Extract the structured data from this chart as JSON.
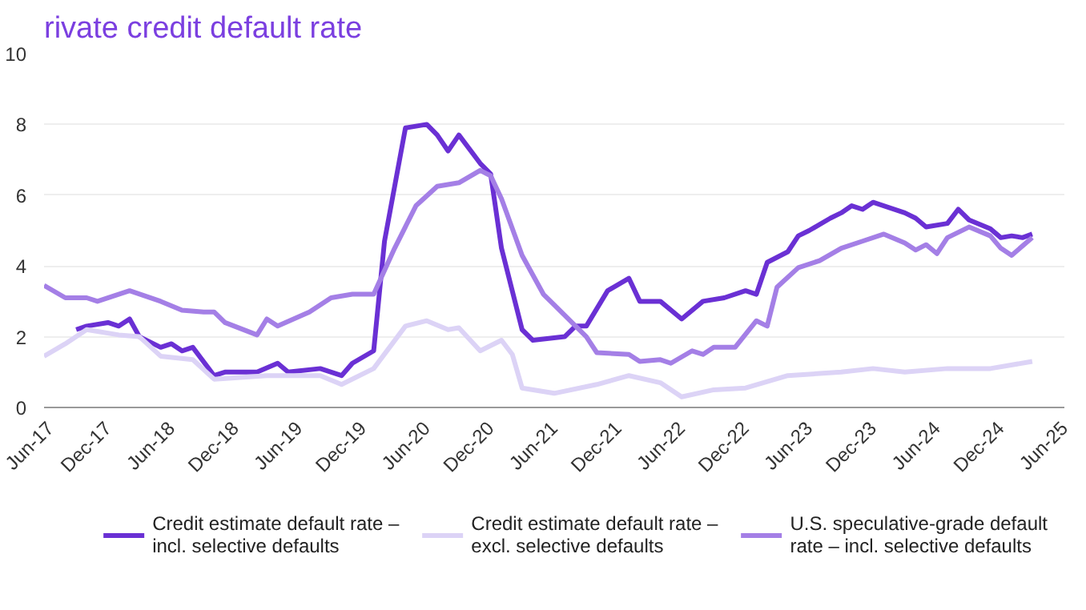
{
  "chart_data": {
    "type": "line",
    "title": "rivate credit default rate",
    "xlim": [
      "2017-06",
      "2025-06"
    ],
    "xticks": [
      {
        "value": "2017-06",
        "label": "Jun-17"
      },
      {
        "value": "2017-12",
        "label": "Dec-17"
      },
      {
        "value": "2018-06",
        "label": "Jun-18"
      },
      {
        "value": "2018-12",
        "label": "Dec-18"
      },
      {
        "value": "2019-06",
        "label": "Jun-19"
      },
      {
        "value": "2019-12",
        "label": "Dec-19"
      },
      {
        "value": "2020-06",
        "label": "Jun-20"
      },
      {
        "value": "2020-12",
        "label": "Dec-20"
      },
      {
        "value": "2021-06",
        "label": "Jun-21"
      },
      {
        "value": "2021-12",
        "label": "Dec-21"
      },
      {
        "value": "2022-06",
        "label": "Jun-22"
      },
      {
        "value": "2022-12",
        "label": "Dec-22"
      },
      {
        "value": "2023-06",
        "label": "Jun-23"
      },
      {
        "value": "2023-12",
        "label": "Dec-23"
      },
      {
        "value": "2024-06",
        "label": "Jun-24"
      },
      {
        "value": "2024-12",
        "label": "Dec-24"
      },
      {
        "value": "2025-06",
        "label": "Jun-25"
      }
    ],
    "ylim": [
      0,
      10
    ],
    "yticks": [
      0,
      2,
      4,
      6,
      8,
      10
    ],
    "grid": "y",
    "legend": "bottom",
    "marker": "none",
    "line_style": "solid",
    "series": [
      {
        "name": "Credit estimate default rate – incl. selective defaults",
        "color": "#6a30d4",
        "x": [
          "2017-09",
          "2017-10",
          "2017-12",
          "2018-01",
          "2018-02",
          "2018-03",
          "2018-05",
          "2018-06",
          "2018-07",
          "2018-08",
          "2018-10",
          "2018-11",
          "2019-02",
          "2019-04",
          "2019-05",
          "2019-08",
          "2019-10",
          "2019-11",
          "2020-01",
          "2020-02",
          "2020-04",
          "2020-06",
          "2020-07",
          "2020-08",
          "2020-09",
          "2020-11",
          "2020-12",
          "2021-01",
          "2021-03",
          "2021-04",
          "2021-07",
          "2021-08",
          "2021-09",
          "2021-11",
          "2022-01",
          "2022-02",
          "2022-04",
          "2022-06",
          "2022-08",
          "2022-10",
          "2022-12",
          "2023-01",
          "2023-02",
          "2023-04",
          "2023-05",
          "2023-06",
          "2023-08",
          "2023-09",
          "2023-10",
          "2023-11",
          "2023-12",
          "2024-03",
          "2024-04",
          "2024-05",
          "2024-07",
          "2024-08",
          "2024-09",
          "2024-11",
          "2024-12",
          "2025-01",
          "2025-02",
          "2025-03"
        ],
        "values": [
          2.2,
          2.3,
          2.4,
          2.3,
          2.5,
          2.0,
          1.7,
          1.8,
          1.6,
          1.7,
          0.9,
          1.0,
          1.0,
          1.25,
          1.0,
          1.1,
          0.9,
          1.25,
          1.6,
          4.7,
          7.9,
          8.0,
          7.7,
          7.25,
          7.7,
          6.9,
          6.6,
          4.5,
          2.2,
          1.9,
          2.0,
          2.3,
          2.3,
          3.3,
          3.65,
          3.0,
          3.0,
          2.5,
          3.0,
          3.1,
          3.3,
          3.2,
          4.1,
          4.4,
          4.85,
          5.0,
          5.35,
          5.5,
          5.7,
          5.6,
          5.8,
          5.5,
          5.35,
          5.1,
          5.2,
          5.6,
          5.3,
          5.05,
          4.8,
          4.85,
          4.8,
          4.9
        ]
      },
      {
        "name": "Credit estimate default rate – excl. selective defaults",
        "color": "#dcd3f6",
        "x": [
          "2017-06",
          "2017-08",
          "2017-10",
          "2018-01",
          "2018-03",
          "2018-05",
          "2018-08",
          "2018-10",
          "2019-03",
          "2019-08",
          "2019-10",
          "2020-01",
          "2020-04",
          "2020-06",
          "2020-08",
          "2020-09",
          "2020-11",
          "2021-01",
          "2021-02",
          "2021-03",
          "2021-06",
          "2021-10",
          "2022-01",
          "2022-04",
          "2022-06",
          "2022-09",
          "2022-12",
          "2023-04",
          "2023-09",
          "2023-12",
          "2024-03",
          "2024-07",
          "2024-11",
          "2025-03"
        ],
        "values": [
          1.45,
          1.8,
          2.2,
          2.05,
          2.0,
          1.45,
          1.35,
          0.8,
          0.9,
          0.9,
          0.65,
          1.1,
          2.3,
          2.45,
          2.2,
          2.25,
          1.6,
          1.9,
          1.5,
          0.55,
          0.4,
          0.65,
          0.9,
          0.7,
          0.3,
          0.5,
          0.55,
          0.9,
          1.0,
          1.1,
          1.0,
          1.1,
          1.1,
          1.3
        ]
      },
      {
        "name": "U.S. speculative-grade default rate – incl. selective defaults",
        "color": "#a47fe6",
        "x": [
          "2017-06",
          "2017-08",
          "2017-10",
          "2017-11",
          "2018-02",
          "2018-05",
          "2018-07",
          "2018-09",
          "2018-10",
          "2018-11",
          "2019-02",
          "2019-03",
          "2019-04",
          "2019-07",
          "2019-09",
          "2019-11",
          "2020-01",
          "2020-03",
          "2020-05",
          "2020-07",
          "2020-09",
          "2020-11",
          "2020-12",
          "2021-01",
          "2021-03",
          "2021-05",
          "2021-06",
          "2021-09",
          "2021-10",
          "2022-01",
          "2022-02",
          "2022-04",
          "2022-05",
          "2022-07",
          "2022-08",
          "2022-09",
          "2022-11",
          "2023-01",
          "2023-02",
          "2023-03",
          "2023-05",
          "2023-07",
          "2023-09",
          "2023-11",
          "2024-01",
          "2024-03",
          "2024-04",
          "2024-05",
          "2024-06",
          "2024-07",
          "2024-09",
          "2024-11",
          "2024-12",
          "2025-01",
          "2025-03"
        ],
        "values": [
          3.45,
          3.1,
          3.1,
          3.0,
          3.3,
          3.0,
          2.75,
          2.7,
          2.7,
          2.4,
          2.05,
          2.5,
          2.3,
          2.7,
          3.1,
          3.2,
          3.2,
          4.5,
          5.7,
          6.25,
          6.35,
          6.7,
          6.55,
          5.9,
          4.3,
          3.2,
          2.9,
          2.0,
          1.55,
          1.5,
          1.3,
          1.35,
          1.25,
          1.6,
          1.5,
          1.7,
          1.7,
          2.45,
          2.3,
          3.4,
          3.95,
          4.15,
          4.5,
          4.7,
          4.9,
          4.65,
          4.45,
          4.6,
          4.35,
          4.8,
          5.1,
          4.85,
          4.5,
          4.3,
          4.8
        ]
      }
    ]
  }
}
